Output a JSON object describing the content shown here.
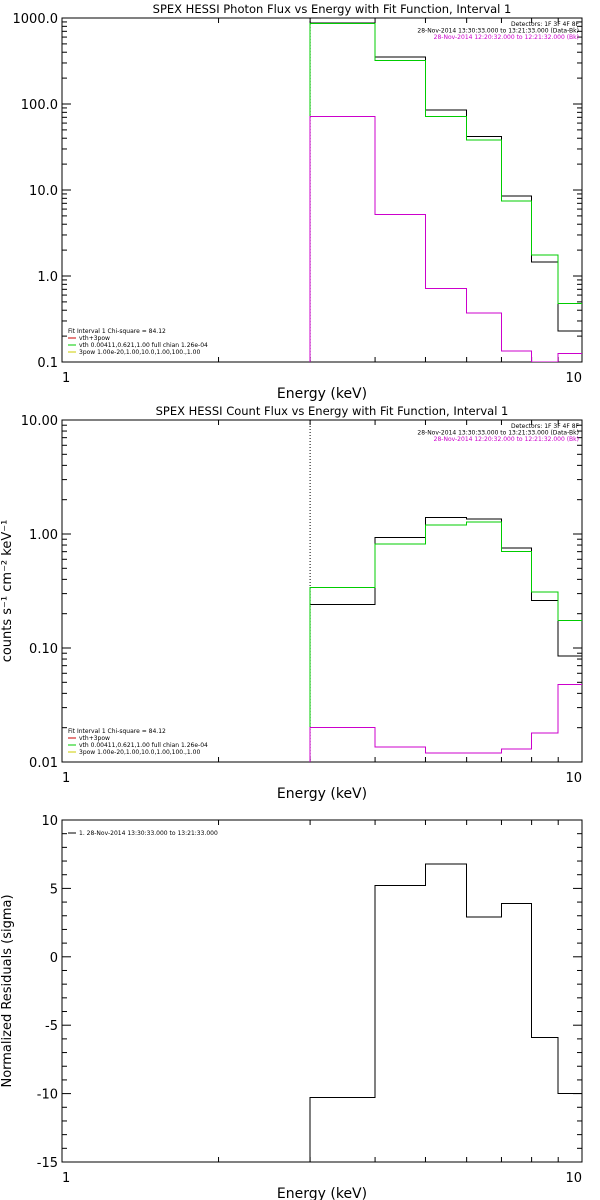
{
  "chart_data": [
    {
      "id": "photon",
      "type": "line",
      "title": "SPEX HESSI Photon Flux vs Energy with Fit Function, Interval 1",
      "xlabel": "Energy (keV)",
      "ylabel": "",
      "xscale": "log",
      "yscale": "log",
      "xlim": [
        1,
        10
      ],
      "ylim": [
        0.1,
        1000
      ],
      "xtick_values": [
        1,
        10
      ],
      "xtick_labels": [
        "1",
        "10"
      ],
      "ytick_values": [
        0.1,
        1,
        10,
        100,
        1000
      ],
      "ytick_labels": [
        "0.1",
        "1.0",
        "10.0",
        "100.0",
        "1000.0"
      ],
      "vline": 3.0,
      "header_lines": [
        {
          "text": "Detectors: 1F 3F 4F 8F",
          "color": "#000000"
        },
        {
          "text": "28-Nov-2014 13:30:33.000 to 13:21:33.000 (Data-Bk)",
          "color": "#000000"
        },
        {
          "text": "28-Nov-2014 12:20:32.000 to 12:21:32.000 (Bk)",
          "color": "#cc00cc"
        }
      ],
      "legend_lines": [
        {
          "text": "Fit Interval 1   Chi-square = 84.12",
          "color": "#000000"
        },
        {
          "text": "vth+3pow",
          "color": "#cc0000"
        },
        {
          "text": "vth 0.00411,0.621,1.00  full chian 1.26e-04",
          "color": "#00cc00"
        },
        {
          "text": "3pow 1.00e-20,1.00,10.0,1.00,100.,1.00",
          "color": "#cccc00"
        }
      ],
      "edges": [
        3,
        4,
        5,
        6,
        7,
        8,
        9,
        10
      ],
      "series": [
        {
          "color": "#000000",
          "values": [
            880,
            350,
            85,
            42,
            8.5,
            1.45,
            0.23
          ]
        },
        {
          "color": "#00cc00",
          "values": [
            860,
            320,
            72,
            38,
            7.4,
            1.75,
            0.48
          ]
        },
        {
          "color": "#cc00cc",
          "values": [
            72,
            5.2,
            0.72,
            0.37,
            0.135,
            0.098,
            0.125
          ]
        }
      ]
    },
    {
      "id": "count",
      "type": "line",
      "title": "SPEX HESSI Count Flux vs Energy with Fit Function, Interval 1",
      "xlabel": "Energy (keV)",
      "ylabel": "counts s⁻¹ cm⁻² keV⁻¹",
      "xscale": "log",
      "yscale": "log",
      "xlim": [
        1,
        10
      ],
      "ylim": [
        0.01,
        10
      ],
      "xtick_values": [
        1,
        10
      ],
      "xtick_labels": [
        "1",
        "10"
      ],
      "ytick_values": [
        0.01,
        0.1,
        1,
        10
      ],
      "ytick_labels": [
        "0.01",
        "0.10",
        "1.00",
        "10.00"
      ],
      "vline": 3.0,
      "header_lines": [
        {
          "text": "Detectors: 1F 3F 4F 8F",
          "color": "#000000"
        },
        {
          "text": "28-Nov-2014 13:30:33.000 to 13:21:33.000 (Data-Bk)",
          "color": "#000000"
        },
        {
          "text": "28-Nov-2014 12:20:32.000 to 12:21:32.000 (Bk)",
          "color": "#cc00cc"
        }
      ],
      "legend_lines": [
        {
          "text": "Fit Interval 1   Chi-square = 84.12",
          "color": "#000000"
        },
        {
          "text": "vth+3pow",
          "color": "#cc0000"
        },
        {
          "text": "vth 0.00411,0.621,1.00  full chian 1.26e-04",
          "color": "#00cc00"
        },
        {
          "text": "3pow 1.00e-20,1.00,10.0,1.00,100.,1.00",
          "color": "#cccc00"
        }
      ],
      "edges": [
        3,
        4,
        5,
        6,
        7,
        8,
        9,
        10
      ],
      "series": [
        {
          "color": "#000000",
          "values": [
            0.24,
            0.93,
            1.4,
            1.35,
            0.75,
            0.26,
            0.085
          ]
        },
        {
          "color": "#00cc00",
          "values": [
            0.34,
            0.82,
            1.2,
            1.28,
            0.7,
            0.31,
            0.175
          ]
        },
        {
          "color": "#cc00cc",
          "values": [
            0.02,
            0.0135,
            0.012,
            0.012,
            0.013,
            0.018,
            0.048
          ]
        }
      ]
    },
    {
      "id": "residuals",
      "type": "line",
      "title": "",
      "xlabel": "Energy (keV)",
      "ylabel": "Normalized Residuals (sigma)",
      "xscale": "log",
      "yscale": "linear",
      "xlim": [
        1,
        10
      ],
      "ylim": [
        -15,
        10
      ],
      "xtick_values": [
        1,
        10
      ],
      "xtick_labels": [
        "1",
        "10"
      ],
      "ytick_values": [
        -15,
        -10,
        -5,
        0,
        5,
        10
      ],
      "ytick_labels": [
        "-15",
        "-10",
        "-5",
        "0",
        "5",
        "10"
      ],
      "header_lines": [],
      "legend_lines": [
        {
          "text": "1. 28-Nov-2014 13:30:33.000 to 13:21:33.000",
          "color": "#000000"
        }
      ],
      "edges": [
        3,
        4,
        5,
        6,
        7,
        8,
        9,
        10
      ],
      "series": [
        {
          "color": "#000000",
          "values": [
            -10.3,
            5.2,
            6.8,
            2.9,
            3.9,
            -5.9,
            -10
          ]
        }
      ]
    }
  ]
}
